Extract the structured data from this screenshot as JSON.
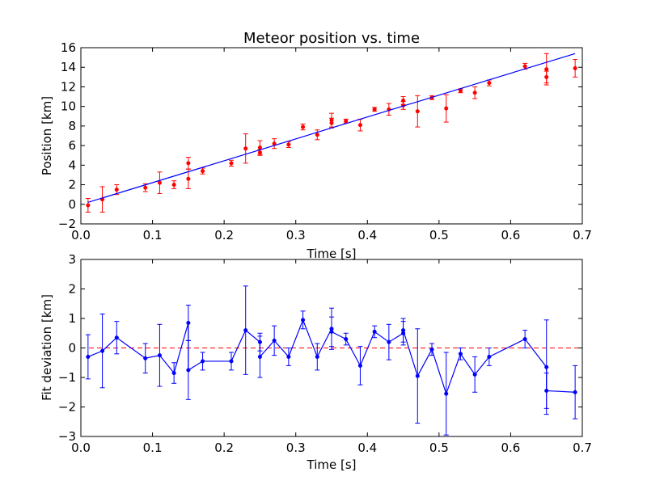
{
  "chart_data": [
    {
      "type": "scatter",
      "title": "Meteor position vs. time",
      "xlabel": "Time [s]",
      "ylabel": "Position [km]",
      "xlim": [
        0,
        0.7
      ],
      "ylim": [
        -2,
        16
      ],
      "xticks": [
        "0.0",
        "0.1",
        "0.2",
        "0.3",
        "0.4",
        "0.5",
        "0.6",
        "0.7"
      ],
      "yticks": [
        "−2",
        "0",
        "2",
        "4",
        "6",
        "8",
        "10",
        "12",
        "14",
        "16"
      ],
      "grid": false,
      "series": [
        {
          "style": "markers-with-error-bars",
          "color": "#ff0000",
          "x": [
            0.01,
            0.03,
            0.05,
            0.09,
            0.11,
            0.13,
            0.15,
            0.15,
            0.17,
            0.21,
            0.23,
            0.25,
            0.25,
            0.27,
            0.29,
            0.31,
            0.33,
            0.35,
            0.35,
            0.37,
            0.39,
            0.41,
            0.43,
            0.45,
            0.45,
            0.47,
            0.49,
            0.51,
            0.53,
            0.55,
            0.57,
            0.62,
            0.65,
            0.65,
            0.69
          ],
          "y": [
            -0.1,
            0.5,
            1.5,
            1.7,
            2.2,
            2.0,
            4.2,
            2.6,
            3.4,
            4.2,
            5.7,
            5.3,
            5.8,
            6.2,
            6.1,
            7.9,
            7.1,
            8.6,
            8.3,
            8.5,
            8.1,
            9.7,
            9.7,
            10.6,
            10.1,
            9.5,
            10.9,
            9.8,
            11.6,
            11.4,
            12.4,
            14.1,
            13.8,
            13.0,
            13.9
          ],
          "yerr": [
            0.7,
            1.3,
            0.5,
            0.4,
            1.1,
            0.4,
            0.6,
            1.0,
            0.3,
            0.3,
            1.5,
            0.3,
            0.7,
            0.5,
            0.3,
            0.3,
            0.5,
            0.7,
            0.5,
            0.2,
            0.6,
            0.2,
            0.6,
            0.4,
            0.4,
            1.6,
            0.2,
            1.4,
            0.2,
            0.6,
            0.3,
            0.3,
            1.6,
            0.6,
            0.9
          ]
        },
        {
          "style": "line",
          "color": "#0000ff",
          "x": [
            0.01,
            0.69
          ],
          "y": [
            0.2,
            15.4
          ]
        }
      ]
    },
    {
      "type": "line",
      "title": "",
      "xlabel": "Time [s]",
      "ylabel": "Fit deviation [km]",
      "xlim": [
        0,
        0.7
      ],
      "ylim": [
        -3,
        3
      ],
      "xticks": [
        "0.0",
        "0.1",
        "0.2",
        "0.3",
        "0.4",
        "0.5",
        "0.6",
        "0.7"
      ],
      "yticks": [
        "−3",
        "−2",
        "−1",
        "0",
        "1",
        "2",
        "3"
      ],
      "grid": false,
      "reference_line": {
        "y": 0,
        "color": "#ff0000",
        "style": "dashed"
      },
      "series": [
        {
          "style": "line-markers-with-error-bars",
          "color": "#0000ff",
          "x": [
            0.01,
            0.03,
            0.05,
            0.09,
            0.11,
            0.13,
            0.15,
            0.15,
            0.17,
            0.21,
            0.23,
            0.25,
            0.25,
            0.27,
            0.29,
            0.31,
            0.33,
            0.35,
            0.35,
            0.37,
            0.39,
            0.41,
            0.43,
            0.45,
            0.45,
            0.47,
            0.49,
            0.51,
            0.53,
            0.55,
            0.57,
            0.62,
            0.65,
            0.65,
            0.69
          ],
          "y": [
            -0.3,
            -0.1,
            0.35,
            -0.35,
            -0.25,
            -0.85,
            0.85,
            -0.75,
            -0.45,
            -0.45,
            0.6,
            0.2,
            -0.3,
            0.25,
            -0.3,
            0.95,
            -0.3,
            0.65,
            0.55,
            0.3,
            -0.6,
            0.55,
            0.2,
            0.5,
            0.6,
            -0.95,
            -0.05,
            -1.55,
            -0.2,
            -0.9,
            -0.3,
            0.3,
            -0.65,
            -1.45,
            -1.5
          ],
          "yerr": [
            0.75,
            1.25,
            0.55,
            0.5,
            1.05,
            0.35,
            0.6,
            1.0,
            0.3,
            0.3,
            1.5,
            0.3,
            0.7,
            0.5,
            0.3,
            0.3,
            0.45,
            0.7,
            0.5,
            0.2,
            0.65,
            0.2,
            0.6,
            0.4,
            0.4,
            1.6,
            0.2,
            1.4,
            0.2,
            0.6,
            0.3,
            0.3,
            1.6,
            0.6,
            0.9
          ]
        }
      ]
    }
  ]
}
